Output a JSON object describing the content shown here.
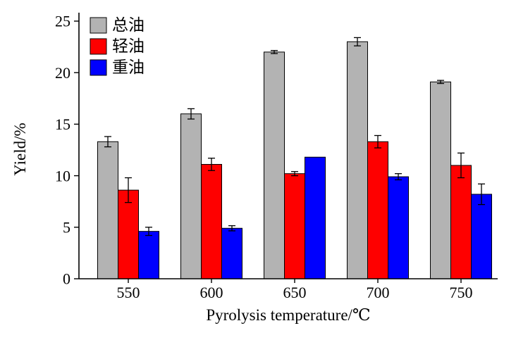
{
  "chart_data": {
    "type": "bar",
    "title": "",
    "xlabel": "Pyrolysis temperature/℃",
    "ylabel": "Yield/%",
    "categories": [
      "550",
      "600",
      "650",
      "700",
      "750"
    ],
    "ylim": [
      0,
      25
    ],
    "yticks": [
      0,
      5,
      10,
      15,
      20,
      25
    ],
    "grid": false,
    "legend_position": "top-left-inside",
    "bar_outline_color": "#000000",
    "axis_color": "#000000",
    "series": [
      {
        "name": "总油",
        "color": "#b3b3b3",
        "values": [
          13.3,
          16.0,
          22.0,
          23.0,
          19.1
        ],
        "errors": [
          0.5,
          0.5,
          0.15,
          0.4,
          0.15
        ]
      },
      {
        "name": "轻油",
        "color": "#fe0000",
        "values": [
          8.6,
          11.1,
          10.2,
          13.3,
          11.0
        ],
        "errors": [
          1.2,
          0.6,
          0.2,
          0.6,
          1.2
        ]
      },
      {
        "name": "重油",
        "color": "#0000fe",
        "values": [
          4.6,
          4.9,
          11.8,
          9.9,
          8.2
        ],
        "errors": [
          0.4,
          0.25,
          0,
          0.3,
          1.0
        ]
      }
    ]
  }
}
